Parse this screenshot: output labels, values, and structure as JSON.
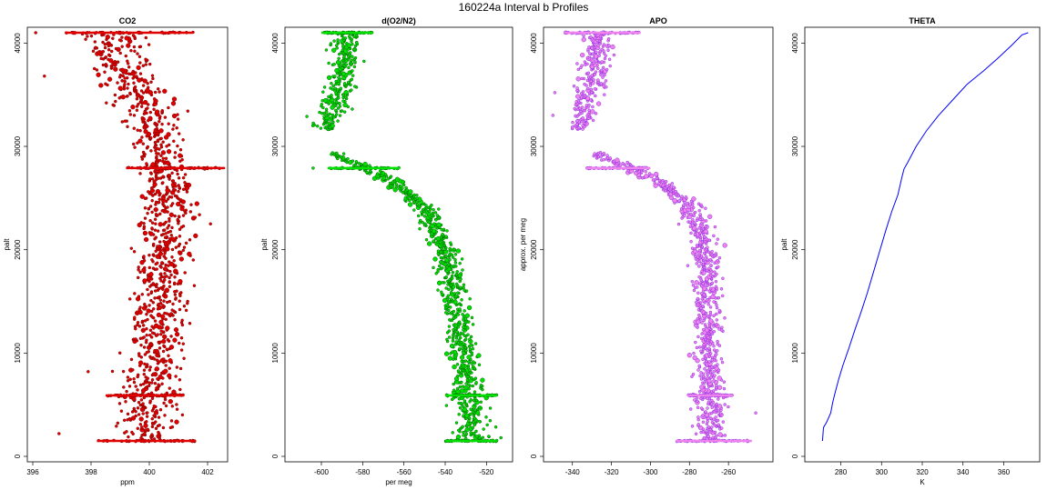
{
  "figure": {
    "title": "160224a   Interval b Profiles"
  },
  "chart_data": [
    {
      "type": "scatter",
      "title": "CO2",
      "xlabel": "ppm",
      "ylabel": "palt",
      "xlim": [
        396,
        402.5
      ],
      "ylim": [
        0,
        41000
      ],
      "xticks": [
        396,
        398,
        400,
        402
      ],
      "yticks": [
        0,
        10000,
        20000,
        30000,
        40000
      ],
      "color": "#e00000",
      "outline": "#7a0000",
      "profile": [
        {
          "y": 1500,
          "x": 399.9,
          "spread": 0.8
        },
        {
          "y": 5000,
          "x": 400.0,
          "spread": 0.8
        },
        {
          "y": 10000,
          "x": 400.2,
          "spread": 0.8
        },
        {
          "y": 15000,
          "x": 400.3,
          "spread": 0.8
        },
        {
          "y": 20000,
          "x": 400.5,
          "spread": 0.8
        },
        {
          "y": 25000,
          "x": 400.7,
          "spread": 0.7
        },
        {
          "y": 28000,
          "x": 400.5,
          "spread": 0.7
        },
        {
          "y": 32000,
          "x": 400.2,
          "spread": 0.8
        },
        {
          "y": 36000,
          "x": 399.4,
          "spread": 0.8
        },
        {
          "y": 41000,
          "x": 398.8,
          "spread": 0.9
        }
      ],
      "dwell": [
        {
          "y": 41000,
          "x0": 397.1,
          "x1": 401.5
        },
        {
          "y": 27900,
          "x0": 399.2,
          "x1": 402.6
        },
        {
          "y": 5900,
          "x0": 398.5,
          "x1": 401.2
        },
        {
          "y": 1500,
          "x0": 398.2,
          "x1": 401.6
        }
      ],
      "outliers": [
        {
          "x": 396.1,
          "y": 41000
        },
        {
          "x": 396.4,
          "y": 36800
        },
        {
          "x": 402.1,
          "y": 22500
        },
        {
          "x": 401.9,
          "y": 27800
        },
        {
          "x": 396.9,
          "y": 2200
        },
        {
          "x": 397.9,
          "y": 8200
        }
      ]
    },
    {
      "type": "scatter",
      "title": "d(O2/N2)",
      "xlabel": "per meg",
      "ylabel": "palt",
      "xlim": [
        -615,
        -510
      ],
      "ylim": [
        0,
        41000
      ],
      "xticks": [
        -600,
        -580,
        -560,
        -540,
        -520
      ],
      "yticks": [
        0,
        10000,
        20000,
        30000,
        40000
      ],
      "color": "#00e000",
      "outline": "#006000",
      "profile": [
        {
          "y": 1500,
          "x": -527,
          "spread": 7
        },
        {
          "y": 5000,
          "x": -528,
          "spread": 7
        },
        {
          "y": 10000,
          "x": -531,
          "spread": 6
        },
        {
          "y": 15000,
          "x": -535,
          "spread": 6
        },
        {
          "y": 20000,
          "x": -540,
          "spread": 5
        },
        {
          "y": 24000,
          "x": -550,
          "spread": 5
        },
        {
          "y": 26500,
          "x": -565,
          "spread": 4
        },
        {
          "y": 28000,
          "x": -580,
          "spread": 4
        },
        {
          "y": 29000,
          "x": -592,
          "spread": 3
        },
        {
          "y": 32000,
          "x": -598,
          "spread": 5
        },
        {
          "y": 36000,
          "x": -590,
          "spread": 6
        },
        {
          "y": 41000,
          "x": -587,
          "spread": 6
        }
      ],
      "gap": [
        29400,
        31600
      ],
      "dwell": [
        {
          "y": 41000,
          "x0": -600,
          "x1": -575
        },
        {
          "y": 27900,
          "x0": -597,
          "x1": -562
        },
        {
          "y": 5900,
          "x0": -540,
          "x1": -515
        },
        {
          "y": 1500,
          "x0": -540,
          "x1": -515
        }
      ],
      "outliers": [
        {
          "x": -607,
          "y": 32900
        },
        {
          "x": -604,
          "y": 27900
        },
        {
          "x": -513,
          "y": 1800
        }
      ]
    },
    {
      "type": "scatter",
      "title": "APO",
      "xlabel": "",
      "ylabel": "approx. per meg",
      "xlim": [
        -352,
        -240
      ],
      "ylim": [
        0,
        41000
      ],
      "xticks": [
        -340,
        -320,
        -300,
        -280,
        -260
      ],
      "yticks": [
        0,
        10000,
        20000,
        30000,
        40000
      ],
      "color": "#ee82ee",
      "outline": "#8a2be2",
      "profile": [
        {
          "y": 1500,
          "x": -268,
          "spread": 7
        },
        {
          "y": 5000,
          "x": -269,
          "spread": 7
        },
        {
          "y": 10000,
          "x": -270,
          "spread": 6
        },
        {
          "y": 15000,
          "x": -270,
          "spread": 6
        },
        {
          "y": 20000,
          "x": -272,
          "spread": 6
        },
        {
          "y": 24000,
          "x": -278,
          "spread": 6
        },
        {
          "y": 26500,
          "x": -295,
          "spread": 5
        },
        {
          "y": 28000,
          "x": -310,
          "spread": 5
        },
        {
          "y": 29000,
          "x": -325,
          "spread": 4
        },
        {
          "y": 32000,
          "x": -336,
          "spread": 5
        },
        {
          "y": 36000,
          "x": -330,
          "spread": 7
        },
        {
          "y": 41000,
          "x": -326,
          "spread": 6
        }
      ],
      "gap": [
        29400,
        31600
      ],
      "dwell": [
        {
          "y": 41000,
          "x0": -344,
          "x1": -305
        },
        {
          "y": 27900,
          "x0": -333,
          "x1": -300
        },
        {
          "y": 5900,
          "x0": -281,
          "x1": -258
        },
        {
          "y": 1500,
          "x0": -287,
          "x1": -248
        }
      ],
      "outliers": [
        {
          "x": -349,
          "y": 35200
        },
        {
          "x": -350,
          "y": 33000
        },
        {
          "x": -246,
          "y": 4200
        }
      ]
    },
    {
      "type": "line",
      "title": "THETA",
      "xlabel": "K",
      "ylabel": "palt",
      "xlim": [
        265,
        375
      ],
      "ylim": [
        0,
        41000
      ],
      "xticks": [
        280,
        300,
        320,
        340,
        360
      ],
      "yticks": [
        0,
        10000,
        20000,
        30000,
        40000
      ],
      "color": "#0000ff",
      "points": [
        {
          "x": 271,
          "y": 1500
        },
        {
          "x": 271.5,
          "y": 2800
        },
        {
          "x": 273,
          "y": 3300
        },
        {
          "x": 275,
          "y": 4200
        },
        {
          "x": 276,
          "y": 5200
        },
        {
          "x": 277,
          "y": 6000
        },
        {
          "x": 279,
          "y": 7500
        },
        {
          "x": 281,
          "y": 8800
        },
        {
          "x": 284,
          "y": 10500
        },
        {
          "x": 287,
          "y": 12300
        },
        {
          "x": 290,
          "y": 14000
        },
        {
          "x": 293,
          "y": 15800
        },
        {
          "x": 296,
          "y": 17800
        },
        {
          "x": 299,
          "y": 19800
        },
        {
          "x": 302,
          "y": 21800
        },
        {
          "x": 305,
          "y": 23700
        },
        {
          "x": 308,
          "y": 25300
        },
        {
          "x": 310,
          "y": 27000
        },
        {
          "x": 311,
          "y": 27800
        },
        {
          "x": 313,
          "y": 28500
        },
        {
          "x": 317,
          "y": 30000
        },
        {
          "x": 322,
          "y": 31500
        },
        {
          "x": 328,
          "y": 33000
        },
        {
          "x": 335,
          "y": 34500
        },
        {
          "x": 342,
          "y": 36000
        },
        {
          "x": 350,
          "y": 37300
        },
        {
          "x": 357,
          "y": 38500
        },
        {
          "x": 364,
          "y": 39800
        },
        {
          "x": 369,
          "y": 40800
        },
        {
          "x": 372,
          "y": 41000
        }
      ]
    }
  ]
}
